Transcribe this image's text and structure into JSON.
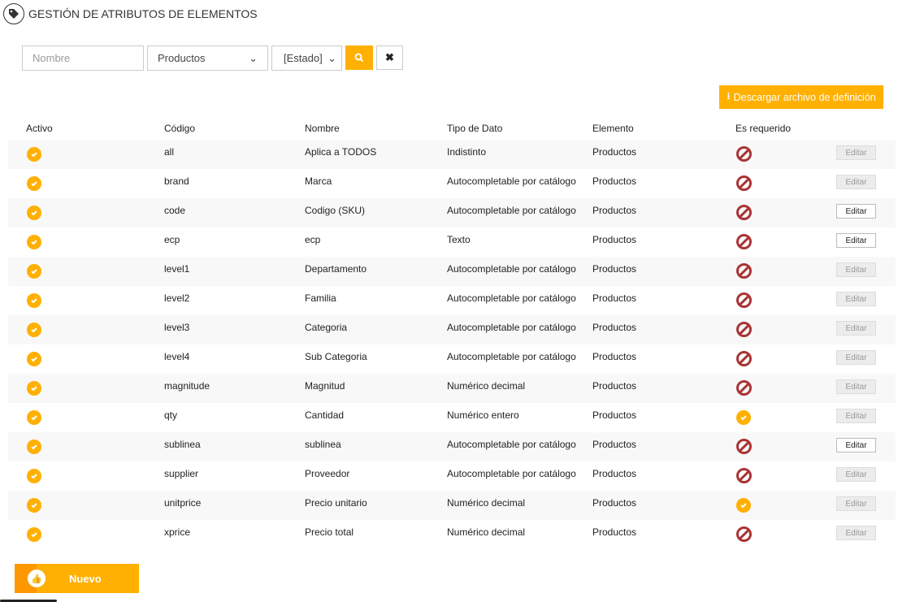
{
  "header": {
    "title": "GESTIÓN DE ATRIBUTOS DE ELEMENTOS",
    "icon": "tag-icon"
  },
  "filters": {
    "name_placeholder": "Nombre",
    "element_value": "Productos",
    "state_value": "[Estado]"
  },
  "download_label": "Descargar archivo de definición",
  "columns": [
    "Activo",
    "Código",
    "Nombre",
    "Tipo de Dato",
    "Elemento",
    "Es requerido"
  ],
  "edit_label": "Editar",
  "new_label": "Nuevo",
  "colors": {
    "accent": "#ffb000",
    "no": "#aa3333"
  },
  "rows": [
    {
      "code": "all",
      "name": "Aplica a TODOS",
      "type": "Indistinto",
      "element": "Productos",
      "active": true,
      "required": false,
      "editable": false
    },
    {
      "code": "brand",
      "name": "Marca",
      "type": "Autocompletable por catálogo",
      "element": "Productos",
      "active": true,
      "required": false,
      "editable": false
    },
    {
      "code": "code",
      "name": "Codigo (SKU)",
      "type": "Autocompletable por catálogo",
      "element": "Productos",
      "active": true,
      "required": false,
      "editable": true
    },
    {
      "code": "ecp",
      "name": "ecp",
      "type": "Texto",
      "element": "Productos",
      "active": true,
      "required": false,
      "editable": true
    },
    {
      "code": "level1",
      "name": "Departamento",
      "type": "Autocompletable por catálogo",
      "element": "Productos",
      "active": true,
      "required": false,
      "editable": false
    },
    {
      "code": "level2",
      "name": "Familia",
      "type": "Autocompletable por catálogo",
      "element": "Productos",
      "active": true,
      "required": false,
      "editable": false
    },
    {
      "code": "level3",
      "name": "Categoria",
      "type": "Autocompletable por catálogo",
      "element": "Productos",
      "active": true,
      "required": false,
      "editable": false
    },
    {
      "code": "level4",
      "name": "Sub Categoria",
      "type": "Autocompletable por catálogo",
      "element": "Productos",
      "active": true,
      "required": false,
      "editable": false
    },
    {
      "code": "magnitude",
      "name": "Magnitud",
      "type": "Numérico decimal",
      "element": "Productos",
      "active": true,
      "required": false,
      "editable": false
    },
    {
      "code": "qty",
      "name": "Cantidad",
      "type": "Numérico entero",
      "element": "Productos",
      "active": true,
      "required": true,
      "editable": false
    },
    {
      "code": "sublinea",
      "name": "sublinea",
      "type": "Autocompletable por catálogo",
      "element": "Productos",
      "active": true,
      "required": false,
      "editable": true
    },
    {
      "code": "supplier",
      "name": "Proveedor",
      "type": "Autocompletable por catálogo",
      "element": "Productos",
      "active": true,
      "required": false,
      "editable": false
    },
    {
      "code": "unitprice",
      "name": "Precio unitario",
      "type": "Numérico decimal",
      "element": "Productos",
      "active": true,
      "required": true,
      "editable": false
    },
    {
      "code": "xprice",
      "name": "Precio total",
      "type": "Numérico decimal",
      "element": "Productos",
      "active": true,
      "required": false,
      "editable": false
    }
  ]
}
